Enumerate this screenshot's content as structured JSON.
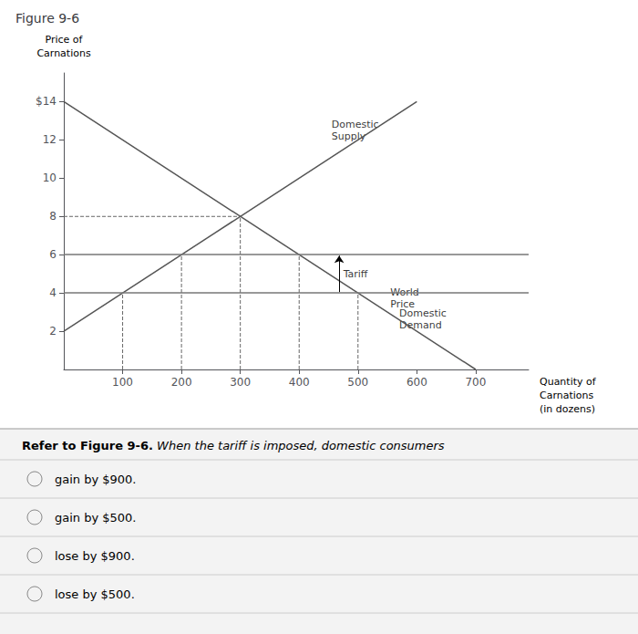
{
  "chart_data": {
    "type": "line",
    "title": "Figure 9-6",
    "ylabel": "Price of\nCarnations",
    "xlabel": "Quantity of\nCarnations\n(in dozens)",
    "xlim": [
      0,
      790
    ],
    "xticks": [
      100,
      200,
      300,
      400,
      500,
      600,
      700
    ],
    "ylim": [
      0,
      15.5
    ],
    "yticks": [
      2,
      4,
      6,
      8,
      10,
      12,
      {
        "value": 14,
        "label": "$14"
      }
    ],
    "grid": false,
    "series": [
      {
        "x": [
          0,
          600
        ],
        "values": [
          2,
          14
        ],
        "color": "#555555",
        "line_style": "solid"
      },
      {
        "x": [
          0,
          700
        ],
        "values": [
          14,
          0
        ],
        "color": "#555555",
        "line_style": "solid"
      },
      {
        "x": [
          0,
          300
        ],
        "values": [
          8,
          8
        ],
        "color": "#666666",
        "line_style": "dashed"
      },
      {
        "x": [
          100,
          100
        ],
        "values": [
          0,
          4
        ],
        "color": "#666666",
        "line_style": "dashed"
      },
      {
        "x": [
          200,
          200
        ],
        "values": [
          0,
          6
        ],
        "color": "#666666",
        "line_style": "dashed"
      },
      {
        "x": [
          300,
          300
        ],
        "values": [
          0,
          8
        ],
        "color": "#666666",
        "line_style": "dashed"
      },
      {
        "x": [
          400,
          400
        ],
        "values": [
          0,
          6
        ],
        "color": "#666666",
        "line_style": "dashed"
      },
      {
        "x": [
          500,
          500
        ],
        "values": [
          0,
          4
        ],
        "color": "#666666",
        "line_style": "dashed"
      }
    ],
    "hlines": [
      {
        "y": 4,
        "color": "#777777"
      },
      {
        "y": 6,
        "color": "#777777"
      }
    ],
    "annotations": [
      {
        "text": "Domestic\nSupply",
        "x": 455,
        "y": 12.5
      },
      {
        "text": "Domestic\nDemand",
        "x": 570,
        "y": 2.6
      },
      {
        "text": "World\nPrice",
        "x": 555,
        "y": 3.7
      },
      {
        "text": "Tariff",
        "x": 475,
        "y": 5
      }
    ],
    "arrows": [
      {
        "x": 468,
        "y_start": 4.05,
        "y_end": 5.95
      }
    ],
    "question_bold": "Refer to Figure 9-6.",
    "question": " When the tariff is imposed, domestic consumers",
    "options": [
      "gain by $900.",
      "gain by $500.",
      "lose by $900.",
      "lose by $500."
    ]
  }
}
